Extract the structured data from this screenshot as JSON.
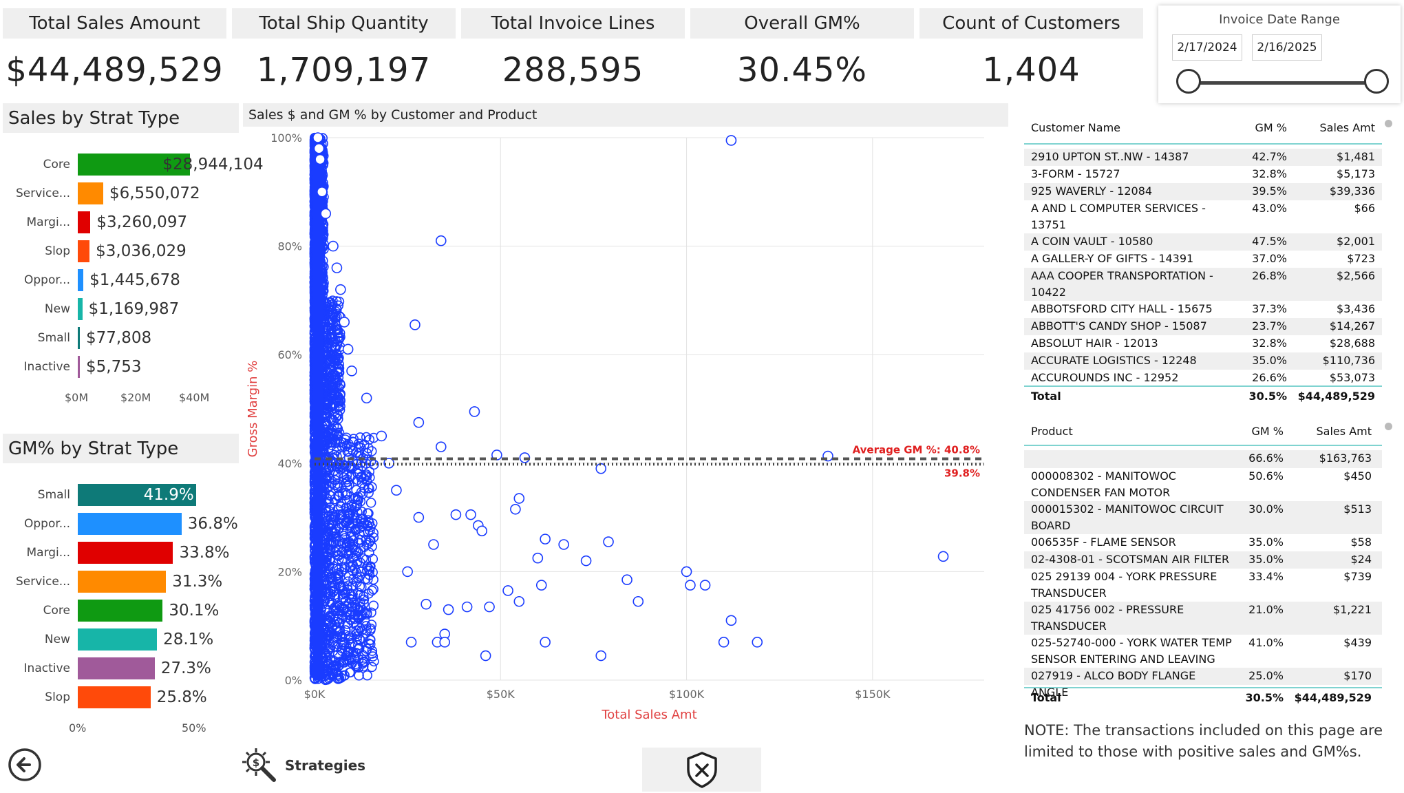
{
  "kpis": [
    {
      "title": "Total Sales Amount",
      "value": "$44,489,529"
    },
    {
      "title": "Total Ship Quantity",
      "value": "1,709,197"
    },
    {
      "title": "Total Invoice Lines",
      "value": "288,595"
    },
    {
      "title": "Overall GM%",
      "value": "30.45%"
    },
    {
      "title": "Count of Customers",
      "value": "1,404"
    }
  ],
  "date_slicer": {
    "title": "Invoice Date Range",
    "start": "2/17/2024",
    "end": "2/16/2025"
  },
  "sales_by_strat": {
    "title": "Sales by Strat Type",
    "axis_ticks": [
      "$0M",
      "$20M",
      "$40M"
    ],
    "items": [
      {
        "label": "Core",
        "value": 28944104,
        "display": "$28,944,104",
        "color": "#0f9a12"
      },
      {
        "label": "Service...",
        "value": 6550072,
        "display": "$6,550,072",
        "color": "#ff8a00"
      },
      {
        "label": "Margi...",
        "value": 3260097,
        "display": "$3,260,097",
        "color": "#e00000"
      },
      {
        "label": "Slop",
        "value": 3036029,
        "display": "$3,036,029",
        "color": "#ff4a0a"
      },
      {
        "label": "Oppor...",
        "value": 1445678,
        "display": "$1,445,678",
        "color": "#1e90ff"
      },
      {
        "label": "New",
        "value": 1169987,
        "display": "$1,169,987",
        "color": "#17b5a8"
      },
      {
        "label": "Small",
        "value": 77808,
        "display": "$77,808",
        "color": "#0e7a78"
      },
      {
        "label": "Inactive",
        "value": 5753,
        "display": "$5,753",
        "color": "#a05a9a"
      }
    ]
  },
  "gm_by_strat": {
    "title": "GM% by Strat Type",
    "axis_ticks": [
      "0%",
      "50%"
    ],
    "items": [
      {
        "label": "Small",
        "value": 41.9,
        "display": "41.9%",
        "color": "#0e7a78"
      },
      {
        "label": "Oppor...",
        "value": 36.8,
        "display": "36.8%",
        "color": "#1e90ff"
      },
      {
        "label": "Margi...",
        "value": 33.8,
        "display": "33.8%",
        "color": "#e00000"
      },
      {
        "label": "Service...",
        "value": 31.3,
        "display": "31.3%",
        "color": "#ff8a00"
      },
      {
        "label": "Core",
        "value": 30.1,
        "display": "30.1%",
        "color": "#0f9a12"
      },
      {
        "label": "New",
        "value": 28.1,
        "display": "28.1%",
        "color": "#17b5a8"
      },
      {
        "label": "Inactive",
        "value": 27.3,
        "display": "27.3%",
        "color": "#a05a9a"
      },
      {
        "label": "Slop",
        "value": 25.8,
        "display": "25.8%",
        "color": "#ff4a0a"
      }
    ]
  },
  "scatter": {
    "title": "Sales $ and GM % by Customer and Product",
    "xlabel": "Total Sales Amt",
    "ylabel": "Gross Margin %",
    "x_ticks": [
      "$0K",
      "$50K",
      "$100K",
      "$150K"
    ],
    "y_ticks": [
      "0%",
      "20%",
      "40%",
      "60%",
      "80%",
      "100%"
    ],
    "avg_label": "Average GM %: 40.8%",
    "ref_label": "39.8%"
  },
  "chart_data": {
    "type": "scatter",
    "title": "Sales $ and GM % by Customer and Product",
    "xlabel": "Total Sales Amt",
    "ylabel": "Gross Margin %",
    "xlim": [
      0,
      180000
    ],
    "ylim": [
      0,
      100
    ],
    "reference_lines": [
      {
        "label": "Average GM %: 40.8%",
        "y": 40.8
      },
      {
        "label": "39.8%",
        "y": 39.8
      }
    ],
    "points": [
      [
        112000,
        99.5
      ],
      [
        34000,
        81
      ],
      [
        27000,
        65.5
      ],
      [
        43000,
        49.5
      ],
      [
        28000,
        47.5
      ],
      [
        34000,
        43
      ],
      [
        49000,
        41.5
      ],
      [
        56500,
        41
      ],
      [
        77000,
        39
      ],
      [
        138000,
        41.3
      ],
      [
        55000,
        33.5
      ],
      [
        54000,
        31.5
      ],
      [
        38000,
        30.5
      ],
      [
        42000,
        30.5
      ],
      [
        44000,
        28.5
      ],
      [
        45000,
        27.5
      ],
      [
        62000,
        26
      ],
      [
        67000,
        25
      ],
      [
        79000,
        25.5
      ],
      [
        73000,
        22
      ],
      [
        60000,
        22.5
      ],
      [
        100000,
        20
      ],
      [
        169000,
        22.8
      ],
      [
        84000,
        18.5
      ],
      [
        101000,
        17.5
      ],
      [
        105000,
        17.5
      ],
      [
        61000,
        17.5
      ],
      [
        87000,
        14.5
      ],
      [
        52000,
        16.5
      ],
      [
        55000,
        14.5
      ],
      [
        47000,
        13.5
      ],
      [
        41000,
        13.5
      ],
      [
        36000,
        13
      ],
      [
        112000,
        11
      ],
      [
        35000,
        8.5
      ],
      [
        26000,
        7
      ],
      [
        33000,
        7
      ],
      [
        35000,
        7
      ],
      [
        62000,
        7
      ],
      [
        110000,
        7
      ],
      [
        119000,
        7
      ],
      [
        46000,
        4.5
      ],
      [
        77000,
        4.5
      ],
      [
        30000,
        14
      ],
      [
        25000,
        20
      ],
      [
        32000,
        25
      ],
      [
        28000,
        30
      ],
      [
        22000,
        35
      ],
      [
        20000,
        40
      ],
      [
        18000,
        45
      ],
      [
        14000,
        52
      ],
      [
        10000,
        57
      ],
      [
        9000,
        61
      ],
      [
        8000,
        66
      ],
      [
        7000,
        72
      ],
      [
        6000,
        76
      ],
      [
        5000,
        80
      ],
      [
        3000,
        86
      ],
      [
        2000,
        90
      ],
      [
        1500,
        96
      ],
      [
        1200,
        98
      ],
      [
        900,
        100
      ]
    ],
    "dense_cluster": {
      "x_range": [
        0,
        15000
      ],
      "y_range": [
        0,
        100
      ],
      "color": "#1a3cff"
    }
  },
  "customer_table": {
    "headers": [
      "Customer Name",
      "GM %",
      "Sales Amt"
    ],
    "rows": [
      [
        "2910 UPTON ST..NW - 14387",
        "42.7%",
        "$1,481"
      ],
      [
        "3-FORM - 15727",
        "32.8%",
        "$5,173"
      ],
      [
        "925 WAVERLY - 12084",
        "39.5%",
        "$39,336"
      ],
      [
        "A AND L COMPUTER SERVICES - 13751",
        "43.0%",
        "$66"
      ],
      [
        "A COIN VAULT - 10580",
        "47.5%",
        "$2,001"
      ],
      [
        "A GALLER-Y OF GIFTS - 14391",
        "37.0%",
        "$723"
      ],
      [
        "AAA COOPER TRANSPORTATION - 10422",
        "26.8%",
        "$2,566"
      ],
      [
        "ABBOTSFORD CITY HALL - 15675",
        "37.3%",
        "$3,436"
      ],
      [
        "ABBOTT'S CANDY SHOP - 15087",
        "23.7%",
        "$14,267"
      ],
      [
        "ABSOLUT HAIR - 12013",
        "32.8%",
        "$28,688"
      ],
      [
        "ACCURATE LOGISTICS - 12248",
        "35.0%",
        "$110,736"
      ],
      [
        "ACCUROUNDS INC - 12952",
        "26.6%",
        "$53,073"
      ]
    ],
    "total": [
      "Total",
      "30.5%",
      "$44,489,529"
    ]
  },
  "product_table": {
    "headers": [
      "Product",
      "GM %",
      "Sales Amt"
    ],
    "rows": [
      [
        "",
        "66.6%",
        "$163,763"
      ],
      [
        "000008302 - MANITOWOC CONDENSER FAN MOTOR",
        "50.6%",
        "$450"
      ],
      [
        "000015302 - MANITOWOC CIRCUIT BOARD",
        "30.0%",
        "$513"
      ],
      [
        "006535F - FLAME SENSOR",
        "35.0%",
        "$58"
      ],
      [
        "02-4308-01 - SCOTSMAN AIR FILTER",
        "35.0%",
        "$24"
      ],
      [
        "025 29139 004 - YORK PRESSURE TRANSDUCER",
        "33.4%",
        "$739"
      ],
      [
        "025 41756 002 - PRESSURE TRANSDUCER",
        "21.0%",
        "$1,221"
      ],
      [
        "025-52740-000 - YORK WATER TEMP SENSOR ENTERING AND LEAVING",
        "41.0%",
        "$439"
      ],
      [
        "027919 - ALCO BODY FLANGE ANGLE",
        "25.0%",
        "$170"
      ]
    ],
    "total": [
      "Total",
      "30.5%",
      "$44,489,529"
    ]
  },
  "note": "NOTE: The transactions included on this page are limited to those with positive sales and GM%s.",
  "nav": {
    "strategies_label": "Strategies"
  }
}
